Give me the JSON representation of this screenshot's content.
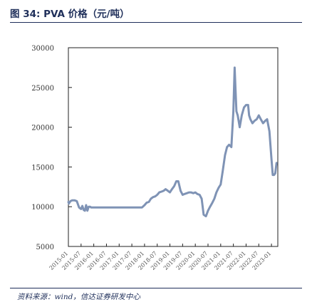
{
  "header": {
    "title": "图 34:  PVA 价格（元/吨）"
  },
  "footer": {
    "source": "资料来源：wind，信达证券研发中心"
  },
  "chart_data": {
    "type": "line",
    "title": "",
    "xlabel": "",
    "ylabel": "",
    "ylim": [
      5000,
      30000
    ],
    "yticks": [
      5000,
      10000,
      15000,
      20000,
      25000,
      30000
    ],
    "x_tick_labels": [
      "2015-01",
      "2015-07",
      "2016-01",
      "2016-07",
      "2017-01",
      "2017-07",
      "2018-01",
      "2018-07",
      "2019-01",
      "2019-07",
      "2020-01",
      "2020-07",
      "2021-01",
      "2021-07",
      "2022-01",
      "2022-07",
      "2023-01"
    ],
    "line_color": "#7f93b5",
    "grid": false,
    "legend": "none",
    "series": [
      {
        "x": [
          2015.0,
          2015.02,
          2015.08,
          2015.15,
          2015.25,
          2015.33,
          2015.42,
          2015.5,
          2015.55,
          2015.6,
          2015.65,
          2015.7,
          2015.75,
          2015.8,
          2015.85,
          2015.9,
          2015.95,
          2016.0,
          2016.5,
          2017.0,
          2017.5,
          2017.9,
          2018.0,
          2018.08,
          2018.17,
          2018.25,
          2018.33,
          2018.42,
          2018.5,
          2018.58,
          2018.67,
          2018.75,
          2018.83,
          2018.92,
          2019.0,
          2019.08,
          2019.17,
          2019.25,
          2019.33,
          2019.42,
          2019.5,
          2019.58,
          2019.67,
          2019.75,
          2019.83,
          2019.92,
          2020.0,
          2020.08,
          2020.17,
          2020.25,
          2020.33,
          2020.42,
          2020.5,
          2020.58,
          2020.67,
          2020.75,
          2020.83,
          2020.92,
          2021.0,
          2021.08,
          2021.17,
          2021.25,
          2021.33,
          2021.42,
          2021.5,
          2021.55,
          2021.58,
          2021.62,
          2021.67,
          2021.75,
          2021.83,
          2021.92,
          2022.0,
          2022.04,
          2022.08,
          2022.12,
          2022.17,
          2022.25,
          2022.33,
          2022.42,
          2022.5,
          2022.58,
          2022.67,
          2022.75,
          2022.83,
          2022.92,
          2023.0,
          2023.05,
          2023.1,
          2023.15,
          2023.2
        ],
        "y": [
          10600,
          10400,
          10700,
          10800,
          10800,
          10700,
          9900,
          9700,
          10100,
          9600,
          9500,
          10200,
          9500,
          10000,
          10000,
          9900,
          9900,
          9900,
          9900,
          9900,
          9900,
          9900,
          10200,
          10500,
          10600,
          11000,
          11200,
          11300,
          11500,
          11800,
          11900,
          12000,
          12200,
          12000,
          11800,
          12200,
          12600,
          13200,
          13200,
          12000,
          11500,
          11600,
          11700,
          11800,
          11800,
          11700,
          11800,
          11600,
          11500,
          11000,
          9000,
          8800,
          9500,
          10000,
          10500,
          11000,
          11800,
          12400,
          12800,
          14500,
          16500,
          17500,
          17800,
          17500,
          22000,
          27500,
          25000,
          22000,
          21500,
          20000,
          21500,
          22500,
          22800,
          22800,
          22800,
          21500,
          21000,
          20500,
          20800,
          21000,
          21500,
          21000,
          20500,
          20800,
          21000,
          19500,
          16000,
          14000,
          14000,
          14200,
          15500
        ]
      }
    ]
  }
}
